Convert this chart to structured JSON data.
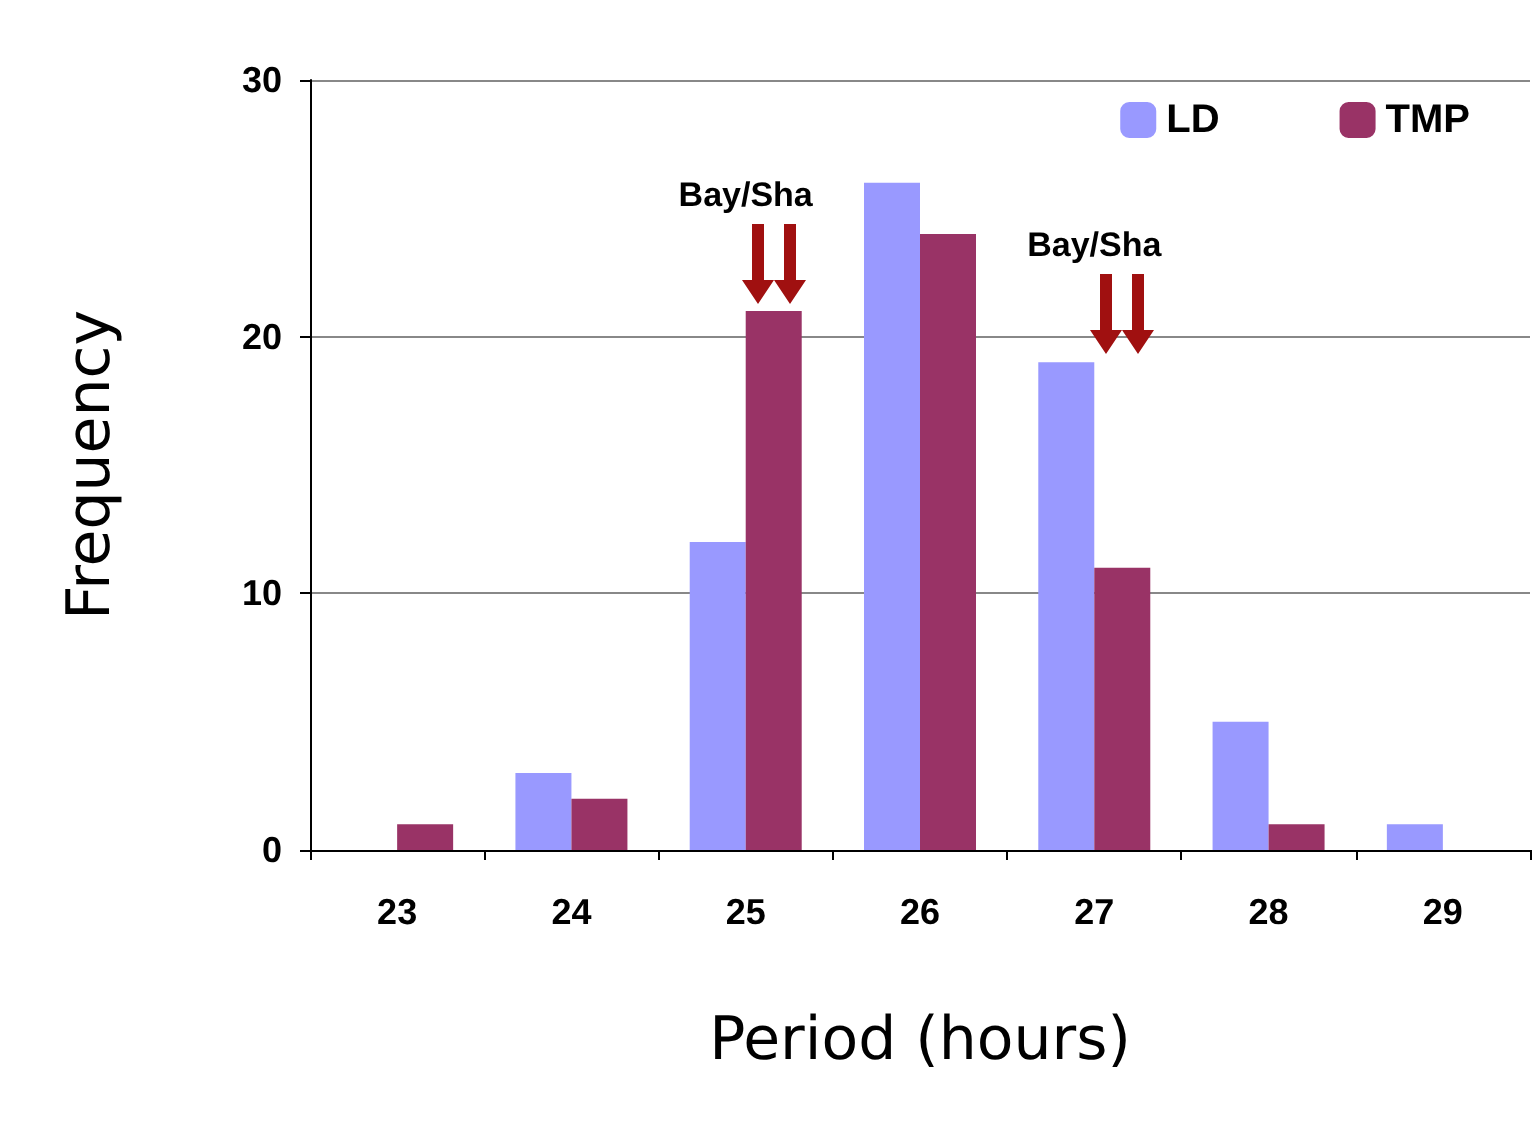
{
  "chart_data": {
    "type": "bar",
    "xlabel": "Period (hours)",
    "ylabel": "Frequency",
    "categories": [
      "23",
      "24",
      "25",
      "26",
      "27",
      "28",
      "29"
    ],
    "series": [
      {
        "name": "LD",
        "color": "#9999ff",
        "values": [
          0,
          3,
          12,
          26,
          19,
          5,
          1
        ]
      },
      {
        "name": "TMP",
        "color": "#993366",
        "values": [
          1,
          2,
          21,
          24,
          11,
          1,
          0
        ]
      }
    ],
    "ylim": [
      0,
      30
    ],
    "yticks": [
      0,
      10,
      20,
      30
    ],
    "grid": "y",
    "legend": "top right",
    "annotations": [
      {
        "text": "Bay/Sha",
        "x": "25",
        "y": 21
      },
      {
        "text": "Bay/Sha",
        "x": "27",
        "y": 19
      }
    ]
  }
}
